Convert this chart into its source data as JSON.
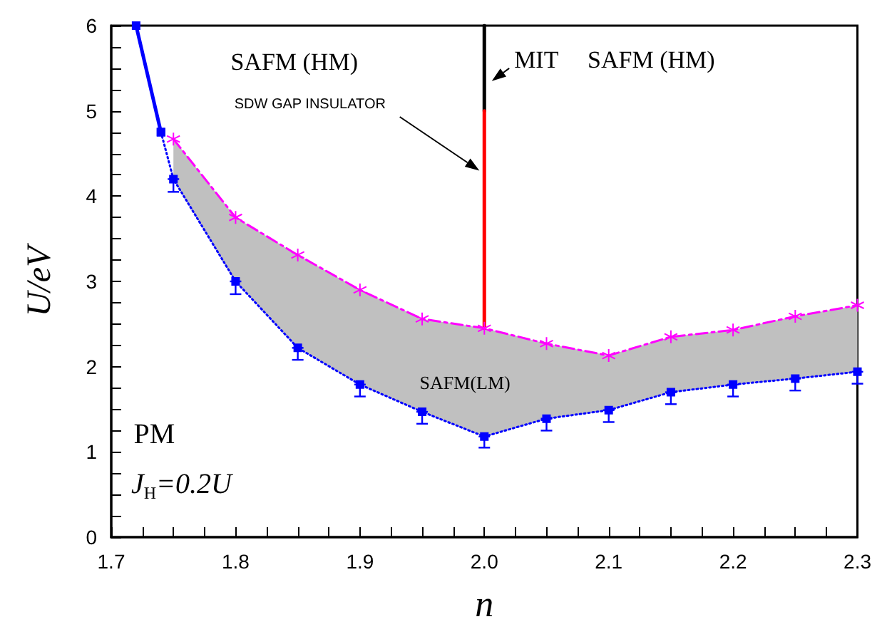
{
  "chart_data": {
    "type": "line",
    "xlabel": "n",
    "ylabel": "U/eV",
    "xlim": [
      1.7,
      2.3
    ],
    "xticks": [
      1.7,
      1.8,
      1.9,
      {
        "value": 2,
        "label": "2.0"
      },
      2.1,
      2.2,
      2.3
    ],
    "ylim": [
      0,
      6
    ],
    "yticks": [
      0,
      1,
      2,
      3,
      4,
      5,
      6
    ],
    "grid": false,
    "series": [
      {
        "color": "#0000ff",
        "x": [
          1.72,
          1.74
        ],
        "values": [
          6.0,
          4.75
        ],
        "line_style": "solid",
        "marker": "square"
      },
      {
        "color": "#0000ff",
        "x": [
          1.74,
          1.75,
          1.8,
          1.85,
          1.9,
          1.95,
          2.0,
          2.05,
          2.1,
          2.15,
          2.2,
          2.25,
          2.3
        ],
        "values": [
          4.75,
          4.2,
          3.0,
          2.22,
          1.79,
          1.47,
          1.18,
          1.39,
          1.49,
          1.7,
          1.79,
          1.86,
          1.94
        ],
        "errors": [
          null,
          [
            4.05,
            4.2
          ],
          [
            2.85,
            3.0
          ],
          [
            2.08,
            2.22
          ],
          [
            1.65,
            1.79
          ],
          [
            1.33,
            1.47
          ],
          [
            1.05,
            1.18
          ],
          [
            1.25,
            1.39
          ],
          [
            1.35,
            1.49
          ],
          [
            1.56,
            1.7
          ],
          [
            1.65,
            1.79
          ],
          [
            1.72,
            1.86
          ],
          [
            1.8,
            1.94
          ]
        ],
        "line_style": "dotted",
        "marker": "square"
      },
      {
        "color": "#ff00ff",
        "x": [
          1.75,
          1.8,
          1.85,
          1.9,
          1.95,
          2.0,
          2.05,
          2.1,
          2.15,
          2.2,
          2.25,
          2.3
        ],
        "values": [
          4.67,
          3.75,
          3.31,
          2.9,
          2.56,
          2.45,
          2.27,
          2.13,
          2.35,
          2.43,
          2.59,
          2.72
        ],
        "lower": [
          4.2,
          3.0,
          2.22,
          1.79,
          1.47,
          1.18,
          1.39,
          1.49,
          1.7,
          1.79,
          1.86,
          1.94
        ],
        "upper": [
          4.67,
          3.75,
          3.31,
          2.9,
          2.56,
          2.45,
          2.27,
          2.13,
          2.35,
          2.43,
          2.59,
          2.72
        ],
        "line_style": "dashed",
        "marker": "cross"
      },
      {
        "color": "#000000",
        "x": [
          2.0,
          2.0
        ],
        "values": [
          5.0,
          6.0
        ],
        "line_style": "solid",
        "marker": "none"
      },
      {
        "color": "#ff0000",
        "x": [
          2.0,
          2.0
        ],
        "values": [
          2.45,
          5.0
        ],
        "line_style": "solid",
        "marker": "none"
      }
    ],
    "annotations": [
      "SAFM (HM)",
      "MIT",
      "SAFM (HM)",
      "SDW GAP INSULATOR",
      "SAFM(LM)",
      "PM",
      "J$_{H}$=0.2U"
    ]
  }
}
